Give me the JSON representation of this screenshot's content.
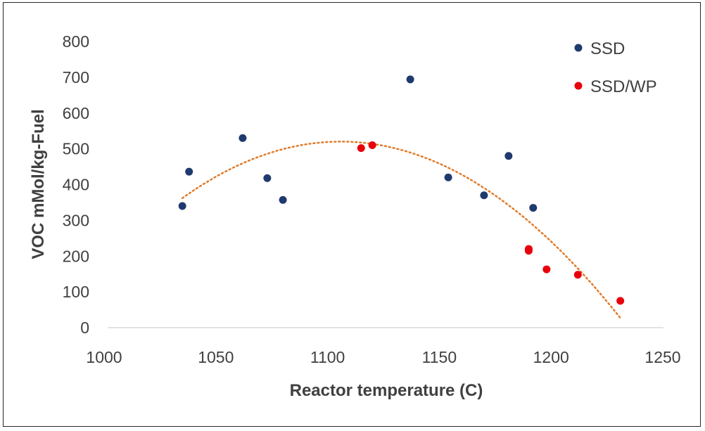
{
  "chart_data": {
    "type": "scatter",
    "title": "",
    "xlabel": "Reactor temperature (C)",
    "ylabel": "VOC mMol/kg-Fuel",
    "xlim": [
      1000,
      1250
    ],
    "ylim": [
      0,
      800
    ],
    "xticks": [
      1000,
      1050,
      1100,
      1150,
      1200,
      1250
    ],
    "yticks": [
      0,
      100,
      200,
      300,
      400,
      500,
      600,
      700,
      800
    ],
    "grid": false,
    "legend_position": "top-right",
    "series": [
      {
        "name": "SSD",
        "color": "#1f3a6e",
        "points": [
          {
            "x": 1035,
            "y": 340
          },
          {
            "x": 1038,
            "y": 436
          },
          {
            "x": 1062,
            "y": 530
          },
          {
            "x": 1073,
            "y": 418
          },
          {
            "x": 1080,
            "y": 357
          },
          {
            "x": 1137,
            "y": 694
          },
          {
            "x": 1154,
            "y": 420
          },
          {
            "x": 1170,
            "y": 370
          },
          {
            "x": 1181,
            "y": 480
          },
          {
            "x": 1192,
            "y": 335
          }
        ]
      },
      {
        "name": "SSD/WP",
        "color": "#e8000b",
        "points": [
          {
            "x": 1115,
            "y": 502
          },
          {
            "x": 1120,
            "y": 510
          },
          {
            "x": 1190,
            "y": 220
          },
          {
            "x": 1190,
            "y": 215
          },
          {
            "x": 1198,
            "y": 163
          },
          {
            "x": 1212,
            "y": 148
          },
          {
            "x": 1231,
            "y": 75
          }
        ]
      }
    ],
    "trendline": {
      "type": "polynomial",
      "order": 2,
      "style": "dotted",
      "color": "#e07b2a",
      "x_range": [
        1035,
        1231
      ],
      "control_points": [
        {
          "x": 1035,
          "y": 362
        },
        {
          "x": 1107,
          "y": 520
        },
        {
          "x": 1231,
          "y": 27
        }
      ]
    }
  }
}
